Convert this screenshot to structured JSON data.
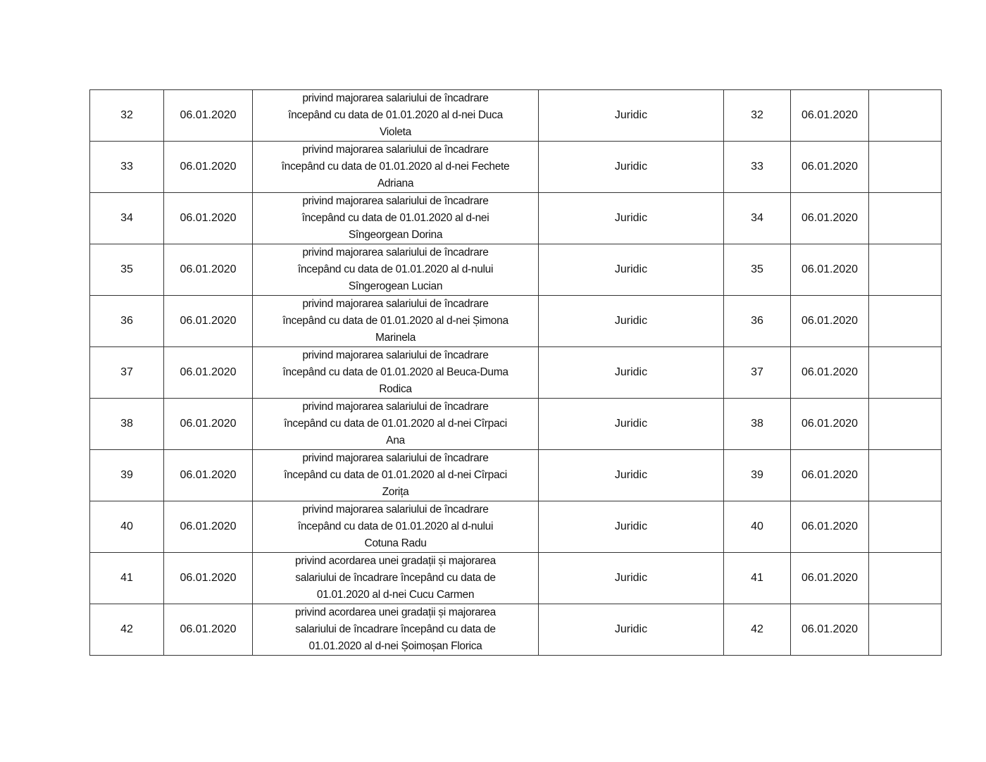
{
  "table": {
    "rows": [
      {
        "nr": "32",
        "date": "06.01.2020",
        "subject": "privind majorarea salariului de încadrare\nîncepând cu data de 01.01.2020 al d-nei Duca\nVioleta",
        "department": "Juridic",
        "nr2": "32",
        "date2": "06.01.2020",
        "notes": ""
      },
      {
        "nr": "33",
        "date": "06.01.2020",
        "subject": "privind majorarea salariului de încadrare\nîncepând cu data de 01.01.2020 al d-nei Fechete\nAdriana",
        "department": "Juridic",
        "nr2": "33",
        "date2": "06.01.2020",
        "notes": ""
      },
      {
        "nr": "34",
        "date": "06.01.2020",
        "subject": "privind majorarea salariului de încadrare\nîncepând cu data de 01.01.2020 al d-nei\nSîngeorgean Dorina",
        "department": "Juridic",
        "nr2": "34",
        "date2": "06.01.2020",
        "notes": ""
      },
      {
        "nr": "35",
        "date": "06.01.2020",
        "subject": "privind majorarea salariului de încadrare\nîncepând cu data de 01.01.2020 al d-nului\nSîngerogean Lucian",
        "department": "Juridic",
        "nr2": "35",
        "date2": "06.01.2020",
        "notes": ""
      },
      {
        "nr": "36",
        "date": "06.01.2020",
        "subject": "privind majorarea salariului de încadrare\nîncepând cu data de 01.01.2020 al d-nei Șimona\nMarinela",
        "department": "Juridic",
        "nr2": "36",
        "date2": "06.01.2020",
        "notes": ""
      },
      {
        "nr": "37",
        "date": "06.01.2020",
        "subject": "privind majorarea salariului de încadrare\nîncepând cu data de 01.01.2020 al Beuca-Duma\nRodica",
        "department": "Juridic",
        "nr2": "37",
        "date2": "06.01.2020",
        "notes": ""
      },
      {
        "nr": "38",
        "date": "06.01.2020",
        "subject": "privind majorarea salariului de încadrare\nîncepând cu data de 01.01.2020 al d-nei Cîrpaci\nAna",
        "department": "Juridic",
        "nr2": "38",
        "date2": "06.01.2020",
        "notes": ""
      },
      {
        "nr": "39",
        "date": "06.01.2020",
        "subject": "privind majorarea salariului de încadrare\nîncepând cu data de 01.01.2020 al d-nei Cîrpaci\nZorița",
        "department": "Juridic",
        "nr2": "39",
        "date2": "06.01.2020",
        "notes": ""
      },
      {
        "nr": "40",
        "date": "06.01.2020",
        "subject": "privind majorarea salariului de încadrare\nîncepând cu data de 01.01.2020 al d-nului\nCotuna Radu",
        "department": "Juridic",
        "nr2": "40",
        "date2": "06.01.2020",
        "notes": ""
      },
      {
        "nr": "41",
        "date": "06.01.2020",
        "subject": "privind acordarea unei gradații și majorarea\nsalariului de încadrare începând cu data de\n01.01.2020 al d-nei Cucu Carmen",
        "department": "Juridic",
        "nr2": "41",
        "date2": "06.01.2020",
        "notes": ""
      },
      {
        "nr": "42",
        "date": "06.01.2020",
        "subject": "privind acordarea unei gradații și majorarea\nsalariului de încadrare începând cu data de\n01.01.2020 al d-nei Șoimoșan Florica",
        "department": "Juridic",
        "nr2": "42",
        "date2": "06.01.2020",
        "notes": ""
      }
    ]
  }
}
